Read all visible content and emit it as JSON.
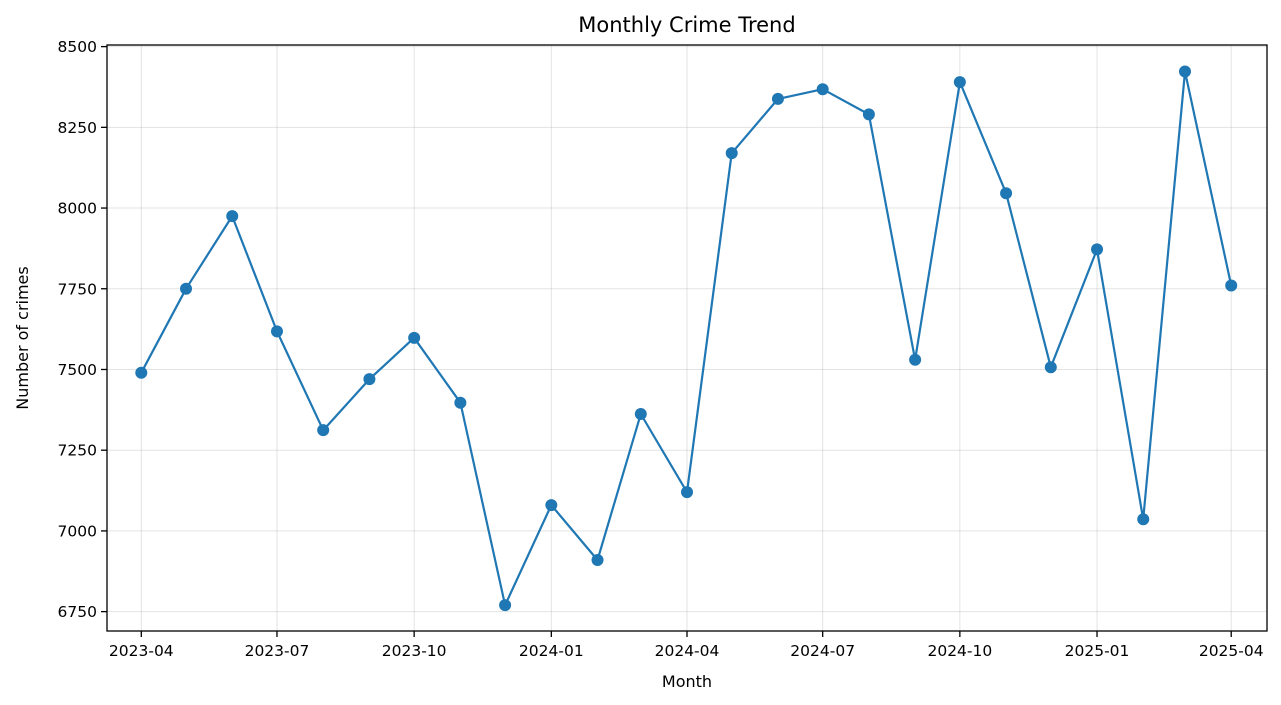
{
  "chart_data": {
    "type": "line",
    "title": "Monthly Crime Trend",
    "xlabel": "Month",
    "ylabel": "Number of crimes",
    "ylim": [
      6690,
      8505
    ],
    "yticks": [
      6750,
      7000,
      7250,
      7500,
      7750,
      8000,
      8250,
      8500
    ],
    "xlim": [
      "2023-03-09",
      "2025-04-25"
    ],
    "xticks": [
      "2023-04",
      "2023-07",
      "2023-10",
      "2024-01",
      "2024-04",
      "2024-07",
      "2024-10",
      "2025-01",
      "2025-04"
    ],
    "grid": true,
    "legend": "none",
    "color": "#1f77b4",
    "x": [
      "2023-04",
      "2023-05",
      "2023-06",
      "2023-07",
      "2023-08",
      "2023-09",
      "2023-10",
      "2023-11",
      "2023-12",
      "2024-01",
      "2024-02",
      "2024-03",
      "2024-04",
      "2024-05",
      "2024-06",
      "2024-07",
      "2024-08",
      "2024-09",
      "2024-10",
      "2024-11",
      "2024-12",
      "2025-01",
      "2025-02",
      "2025-03",
      "2025-04"
    ],
    "values": [
      7490,
      7750,
      7975,
      7618,
      7312,
      7470,
      7598,
      7397,
      6770,
      7080,
      6910,
      7362,
      7120,
      8170,
      8338,
      8368,
      8290,
      7530,
      8390,
      8046,
      7507,
      7872,
      7036,
      8423,
      7760
    ]
  }
}
